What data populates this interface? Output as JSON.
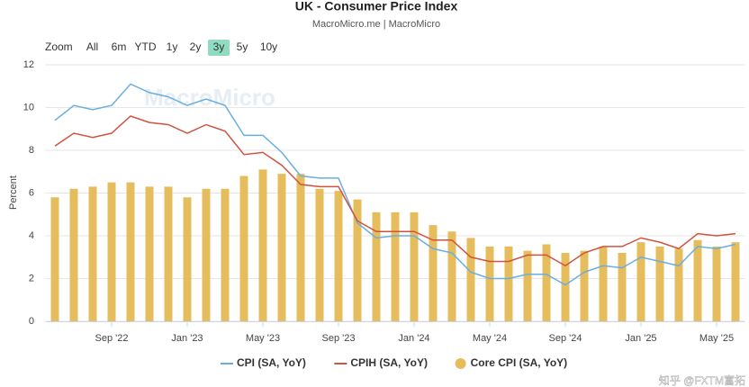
{
  "chart_data": {
    "type": "combo",
    "title": "UK - Consumer Price Index",
    "subtitle": "MacroMicro.me | MacroMicro",
    "range_selector": {
      "label": "Zoom",
      "buttons": [
        "All",
        "6m",
        "YTD",
        "1y",
        "2y",
        "3y",
        "5y",
        "10y"
      ],
      "active": "3y"
    },
    "watermark": "MacroMicro",
    "credit": "知乎 @FXTM富拓",
    "ylabel": "Percent",
    "ylim": [
      0,
      12
    ],
    "yticks": [
      0,
      2,
      4,
      6,
      8,
      10,
      12
    ],
    "grid": true,
    "categories": [
      null,
      null,
      null,
      "Sep '22",
      null,
      null,
      null,
      "Jan '23",
      null,
      null,
      null,
      "May '23",
      null,
      null,
      null,
      "Sep '23",
      null,
      null,
      null,
      "Jan '24",
      null,
      null,
      null,
      "May '24",
      null,
      null,
      null,
      "Sep '24",
      null,
      null,
      null,
      "Jan '25",
      null,
      null,
      null,
      "May '25",
      null
    ],
    "series": [
      {
        "name": "CPI (SA, YoY)",
        "type": "line",
        "color": "#6aaee0",
        "values": [
          9.4,
          10.1,
          9.9,
          10.1,
          11.1,
          10.7,
          10.5,
          10.1,
          10.4,
          10.1,
          8.7,
          8.7,
          7.9,
          6.8,
          6.7,
          6.7,
          4.6,
          3.9,
          4.0,
          4.0,
          3.4,
          3.2,
          2.3,
          2.0,
          2.0,
          2.2,
          2.2,
          1.7,
          2.3,
          2.6,
          2.5,
          3.0,
          2.8,
          2.6,
          3.5,
          3.4,
          3.6
        ]
      },
      {
        "name": "CPIH (SA, YoY)",
        "type": "line",
        "color": "#d0533f",
        "values": [
          8.2,
          8.8,
          8.6,
          8.8,
          9.6,
          9.3,
          9.2,
          8.8,
          9.2,
          8.9,
          7.8,
          7.9,
          7.3,
          6.4,
          6.3,
          6.3,
          4.7,
          4.2,
          4.2,
          4.2,
          3.8,
          3.8,
          3.0,
          2.8,
          2.8,
          3.1,
          3.1,
          2.6,
          3.2,
          3.5,
          3.5,
          3.9,
          3.7,
          3.4,
          4.1,
          4.0,
          4.1
        ]
      },
      {
        "name": "Core CPI (SA, YoY)",
        "type": "bar",
        "color": "#e6bd5c",
        "values": [
          5.8,
          6.2,
          6.3,
          6.5,
          6.5,
          6.3,
          6.3,
          5.8,
          6.2,
          6.2,
          6.8,
          7.1,
          6.9,
          6.9,
          6.2,
          6.1,
          5.7,
          5.1,
          5.1,
          5.1,
          4.5,
          4.2,
          3.9,
          3.5,
          3.5,
          3.3,
          3.6,
          3.2,
          3.3,
          3.5,
          3.2,
          3.7,
          3.5,
          3.4,
          3.8,
          3.5,
          3.7
        ]
      }
    ]
  }
}
